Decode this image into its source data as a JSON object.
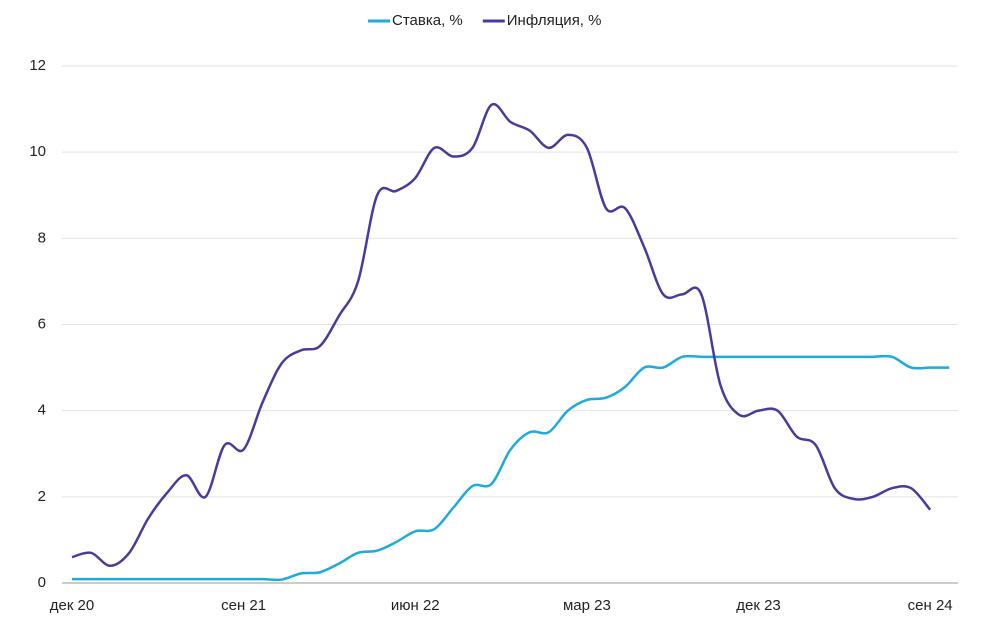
{
  "chart_data": {
    "type": "line",
    "categories": [
      "дек 20",
      null,
      null,
      null,
      null,
      null,
      null,
      null,
      null,
      "сен 21",
      null,
      null,
      null,
      null,
      null,
      null,
      null,
      null,
      "июн 22",
      null,
      null,
      null,
      null,
      null,
      null,
      null,
      null,
      "мар 23",
      null,
      null,
      null,
      null,
      null,
      null,
      null,
      null,
      "дек 23",
      null,
      null,
      null,
      null,
      null,
      null,
      null,
      null,
      "сен 24",
      null
    ],
    "series": [
      {
        "name": "Ставка, %",
        "color": "#1eaadc",
        "values": [
          0.09,
          0.09,
          0.09,
          0.09,
          0.09,
          0.09,
          0.09,
          0.09,
          0.09,
          0.09,
          0.09,
          0.08,
          0.22,
          0.25,
          0.45,
          0.7,
          0.75,
          0.95,
          1.2,
          1.25,
          1.75,
          2.25,
          2.3,
          3.1,
          3.5,
          3.5,
          4.0,
          4.25,
          4.3,
          4.55,
          5.0,
          5.0,
          5.25,
          5.25,
          5.25,
          5.25,
          5.25,
          5.25,
          5.25,
          5.25,
          5.25,
          5.25,
          5.25,
          5.25,
          5.0,
          5.0,
          5.0
        ]
      },
      {
        "name": "Инфляция, %",
        "color": "#4b3a9e",
        "values": [
          0.6,
          0.7,
          0.4,
          0.7,
          1.5,
          2.1,
          2.5,
          2.0,
          3.2,
          3.1,
          4.2,
          5.1,
          5.4,
          5.5,
          6.2,
          7.0,
          9.0,
          9.1,
          9.4,
          10.1,
          9.9,
          10.1,
          11.1,
          10.7,
          10.5,
          10.1,
          10.4,
          10.1,
          8.7,
          8.7,
          7.8,
          6.7,
          6.7,
          6.7,
          4.6,
          3.9,
          4.0,
          4.0,
          3.4,
          3.2,
          2.2,
          1.95,
          2.0,
          2.2,
          2.2,
          1.7,
          null
        ]
      }
    ],
    "ylim": [
      0,
      12
    ],
    "yticks": [
      0,
      2,
      4,
      6,
      8,
      10,
      12
    ],
    "grid": true,
    "legend": "top"
  }
}
